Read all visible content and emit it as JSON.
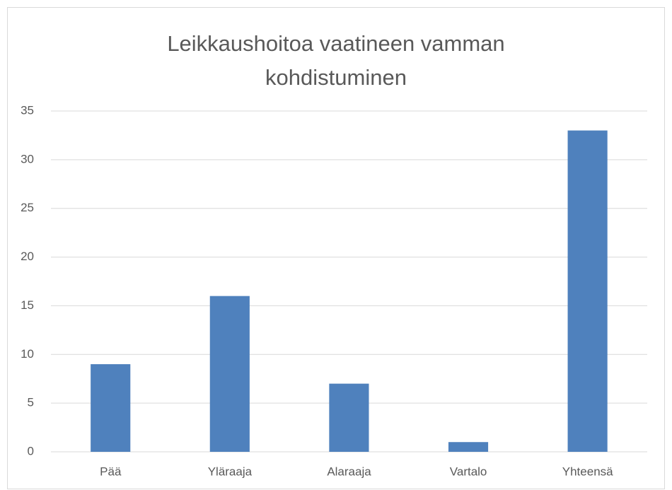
{
  "chart_data": {
    "type": "bar",
    "title": "Leikkaushoitoa vaatineen vamman kohdistuminen",
    "categories": [
      "Pää",
      "Yläraaja",
      "Alaraaja",
      "Vartalo",
      "Yhteensä"
    ],
    "values": [
      9,
      16,
      7,
      1,
      33
    ],
    "color": "#4f81bd",
    "ylim": [
      0,
      35
    ],
    "yticks": [
      0,
      5,
      10,
      15,
      20,
      25,
      30,
      35
    ],
    "grid": true
  }
}
